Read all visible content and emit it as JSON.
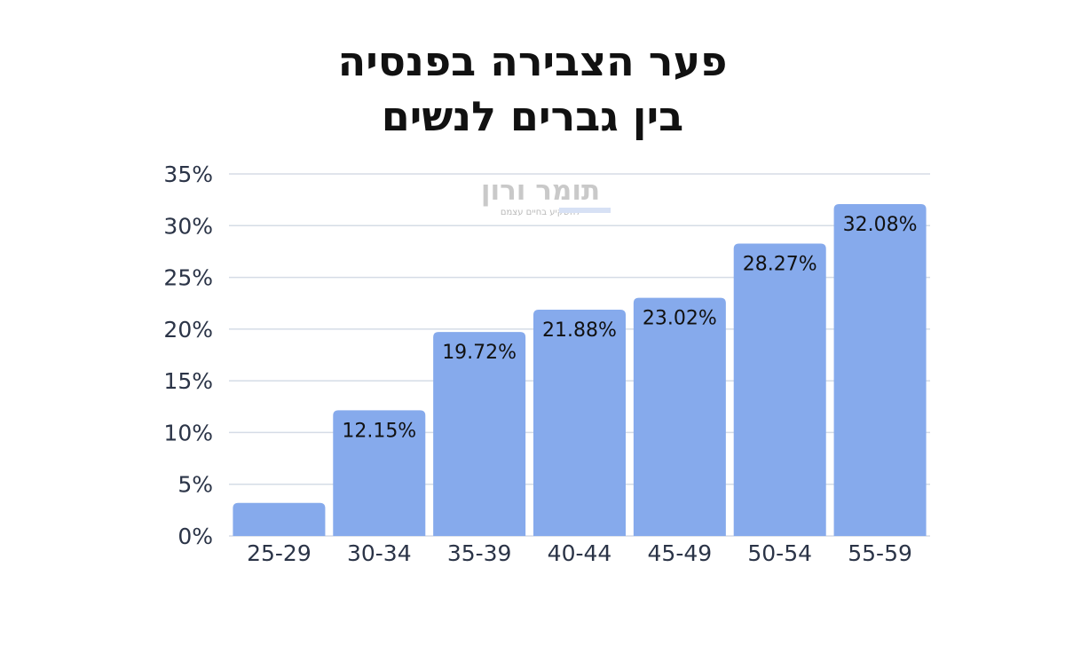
{
  "title": {
    "line1": "פער הצבירה בפנסיה",
    "line2": "בין גברים לנשים"
  },
  "watermark": {
    "name": "תומר ורון",
    "tagline": "להשקיע בחיים עצמם"
  },
  "colors": {
    "bar": "#86aaec",
    "grid": "#d5dce6",
    "axis_text": "#2b3447",
    "label_text": "#111111"
  },
  "chart_data": {
    "type": "bar",
    "title": "פער הצבירה בפנסיה בין גברים לנשים",
    "xlabel": "",
    "ylabel": "",
    "categories": [
      "25-29",
      "30-34",
      "35-39",
      "40-44",
      "45-49",
      "50-54",
      "55-59"
    ],
    "values": [
      3.2,
      12.15,
      19.72,
      21.88,
      23.02,
      28.27,
      32.08
    ],
    "data_labels": [
      null,
      "12.15%",
      "19.72%",
      "21.88%",
      "23.02%",
      "28.27%",
      "32.08%"
    ],
    "ylim": [
      0,
      35
    ],
    "yticks": [
      "0%",
      "5%",
      "10%",
      "15%",
      "20%",
      "25%",
      "30%",
      "35%"
    ],
    "grid": true,
    "legend": "none"
  }
}
